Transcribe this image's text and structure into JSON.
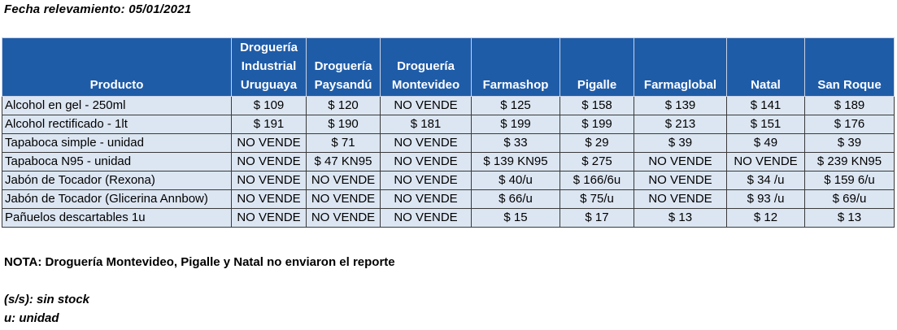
{
  "survey_date_label": "Fecha relevamiento: 05/01/2021",
  "table": {
    "headers": [
      [
        "Producto"
      ],
      [
        "Droguería",
        "Industrial",
        "Uruguaya"
      ],
      [
        "Droguería",
        "Paysandú"
      ],
      [
        "Droguería",
        "Montevideo"
      ],
      [
        "Farmashop"
      ],
      [
        "Pigalle"
      ],
      [
        "Farmaglobal"
      ],
      [
        "Natal"
      ],
      [
        "San Roque"
      ]
    ],
    "rows": [
      [
        "Alcohol en gel  - 250ml",
        "$ 109",
        "$ 120",
        "NO VENDE",
        "$ 125",
        "$ 158",
        "$ 139",
        "$ 141",
        "$ 189"
      ],
      [
        "Alcohol rectificado - 1lt",
        "$ 191",
        "$ 190",
        "$ 181",
        "$ 199",
        "$ 199",
        "$ 213",
        "$ 151",
        "$ 176"
      ],
      [
        "Tapaboca simple - unidad",
        "NO VENDE",
        "$ 71",
        "NO VENDE",
        "$ 33",
        "$ 29",
        "$ 39",
        "$ 49",
        "$ 39"
      ],
      [
        "Tapaboca N95 - unidad",
        "NO VENDE",
        "$ 47  KN95",
        "NO VENDE",
        "$ 139  KN95",
        "$ 275",
        "NO VENDE",
        "NO VENDE",
        "$ 239  KN95"
      ],
      [
        "Jabón de Tocador (Rexona)",
        "NO VENDE",
        "NO VENDE",
        "NO VENDE",
        "$ 40/u",
        "$ 166/6u",
        "NO VENDE",
        "$ 34 /u",
        "$ 159 6/u"
      ],
      [
        "Jabón de Tocador (Glicerina Annbow)",
        "NO VENDE",
        "NO VENDE",
        "NO VENDE",
        "$ 66/u",
        "$ 75/u",
        "NO VENDE",
        "$ 93 /u",
        "$ 69/u"
      ],
      [
        "Pañuelos descartables 1u",
        "NO VENDE",
        "NO VENDE",
        "NO VENDE",
        "$ 15",
        "$ 17",
        "$ 13",
        "$ 12",
        "$ 13"
      ]
    ]
  },
  "note": "NOTA: Droguería Montevideo, Pigalle y Natal no enviaron el reporte",
  "legend": [
    "(s/s): sin stock",
    "u: unidad"
  ],
  "colors": {
    "header_bg": "#1f5ca8",
    "header_text": "#ffffff",
    "cell_bg": "#dce6f2",
    "cell_border": "#3a3a3a"
  }
}
